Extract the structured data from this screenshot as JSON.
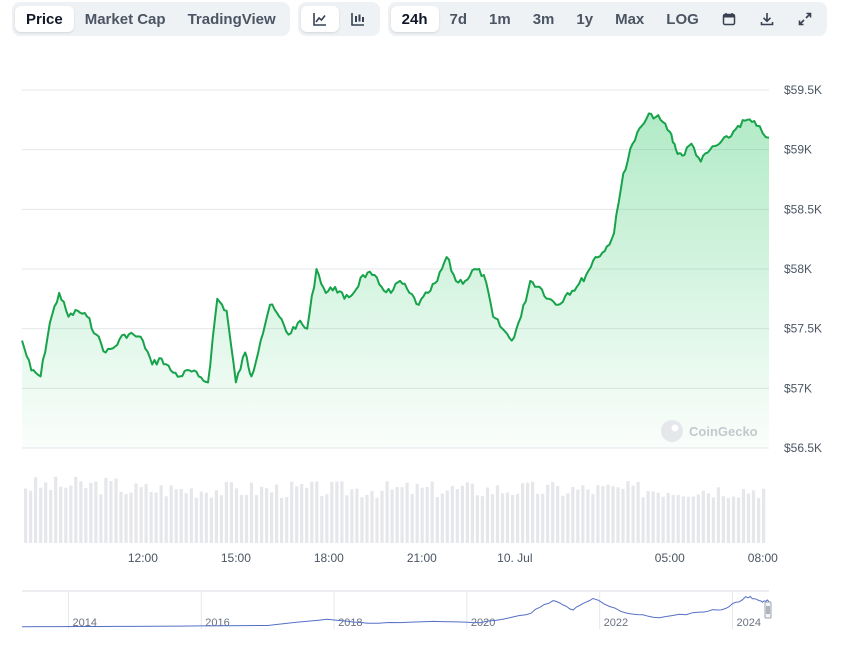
{
  "toolbar": {
    "tabs": [
      "Price",
      "Market Cap",
      "TradingView"
    ],
    "active_tab": "Price",
    "chart_styles": [
      "line-chart-icon",
      "candlestick-chart-icon"
    ],
    "ranges": [
      "24h",
      "7d",
      "1m",
      "3m",
      "1y",
      "Max",
      "LOG"
    ],
    "active_range": "24h",
    "actions": [
      "calendar-icon",
      "download-icon",
      "fullscreen-icon"
    ]
  },
  "watermark": "CoinGecko",
  "colors": {
    "line": "#16a34a",
    "area": "#22c55e",
    "volume": "#e5e7eb",
    "navigator": "#5470c6"
  },
  "chart_data": {
    "type": "area",
    "y_axis": {
      "ticks": [
        56500,
        57000,
        57500,
        58000,
        58500,
        59000,
        59500
      ],
      "tick_labels": [
        "$56.5K",
        "$57K",
        "$57.5K",
        "$58K",
        "$58.5K",
        "$59K",
        "$59.5K"
      ],
      "range": [
        56500,
        59500
      ]
    },
    "x_axis": {
      "ticks": [
        12,
        15,
        18,
        21,
        24,
        29,
        32
      ],
      "tick_labels": [
        "12:00",
        "15:00",
        "18:00",
        "21:00",
        "10. Jul",
        "05:00",
        "08:00"
      ],
      "range": [
        8.1,
        32.2
      ]
    },
    "series": [
      {
        "x": [
          8.1,
          8.4,
          8.7,
          9.0,
          9.3,
          9.6,
          9.9,
          10.2,
          10.5,
          10.8,
          11.1,
          11.4,
          11.7,
          12.0,
          12.3,
          12.6,
          12.9,
          13.2,
          13.5,
          13.8,
          14.1,
          14.4,
          14.7,
          15.0,
          15.3,
          15.5,
          15.8,
          16.1,
          16.4,
          16.7,
          17.0,
          17.3,
          17.6,
          17.9,
          18.2,
          18.5,
          18.8,
          19.1,
          19.4,
          19.7,
          20.0,
          20.3,
          20.6,
          20.9,
          21.2,
          21.5,
          21.8,
          22.1,
          22.4,
          22.7,
          23.0,
          23.3,
          23.6,
          23.9,
          24.2,
          24.5,
          24.8,
          25.1,
          25.4,
          25.7,
          26.0,
          26.3,
          26.6,
          26.9,
          27.2,
          27.5,
          27.8,
          28.1,
          28.4,
          28.7,
          29.0,
          29.2,
          29.4,
          29.7,
          30.0,
          30.3,
          30.6,
          30.9,
          31.2,
          31.5,
          31.8,
          32.2
        ],
        "values": [
          57400,
          57150,
          57100,
          57550,
          57800,
          57600,
          57650,
          57600,
          57450,
          57300,
          57350,
          57450,
          57450,
          57400,
          57200,
          57250,
          57150,
          57100,
          57150,
          57100,
          57050,
          57750,
          57650,
          57050,
          57300,
          57100,
          57400,
          57700,
          57600,
          57450,
          57550,
          57500,
          58000,
          57800,
          57850,
          57750,
          57800,
          57950,
          57950,
          57850,
          57800,
          57900,
          57800,
          57700,
          57800,
          57900,
          58100,
          57900,
          57900,
          58000,
          57950,
          57600,
          57500,
          57400,
          57600,
          57900,
          57850,
          57750,
          57700,
          57800,
          57850,
          57950,
          58100,
          58150,
          58300,
          58800,
          59050,
          59200,
          59300,
          59250,
          59150,
          59000,
          58950,
          59050,
          58900,
          59000,
          59050,
          59100,
          59200,
          59250,
          59200,
          59100
        ]
      }
    ],
    "volume": {
      "range": [
        0,
        1
      ]
    },
    "navigator": {
      "tick_labels": [
        "2014",
        "2016",
        "2018",
        "2020",
        "2022",
        "2024"
      ],
      "ticks": [
        2014,
        2016,
        2018,
        2020,
        2022,
        2024
      ],
      "range": [
        2013.3,
        2024.55
      ]
    }
  }
}
